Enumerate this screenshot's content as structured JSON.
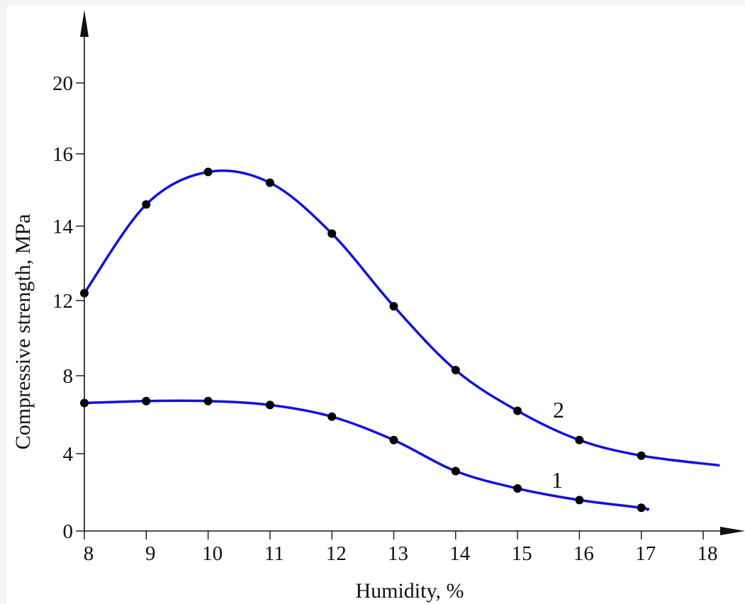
{
  "colors": {
    "background": "#f4f5f7",
    "plot_area": "#ffffff",
    "curve": "#1010e0",
    "point": "#000000",
    "axis": "#111111"
  },
  "chart_data": {
    "type": "line",
    "xlabel": "Humidity, %",
    "ylabel": "Compressive strength, MPa",
    "x_ticks": [
      "8",
      "9",
      "10",
      "11",
      "12",
      "13",
      "14",
      "15",
      "16",
      "17",
      "18"
    ],
    "y_ticks": [
      "0",
      "4",
      "8",
      "12",
      "14",
      "16",
      "20"
    ],
    "y_tick_values": [
      0,
      4,
      8,
      12,
      14,
      16,
      20
    ],
    "grid": false,
    "series": [
      {
        "name": "1",
        "x": [
          8,
          9,
          10,
          11,
          12,
          13,
          14,
          15,
          16,
          17
        ],
        "values": [
          6.6,
          6.7,
          6.7,
          6.5,
          5.9,
          4.7,
          3.1,
          2.2,
          1.6,
          1.2
        ],
        "curve_end": {
          "x": 17.1,
          "y": 1.1
        }
      },
      {
        "name": "2",
        "x": [
          8,
          9,
          10,
          11,
          12,
          13,
          14,
          15,
          16,
          17
        ],
        "values": [
          12.2,
          14.6,
          15.5,
          15.2,
          13.8,
          11.7,
          8.3,
          6.2,
          4.7,
          3.9
        ],
        "curve_end": {
          "x": 18.25,
          "y": 3.4
        }
      }
    ]
  }
}
